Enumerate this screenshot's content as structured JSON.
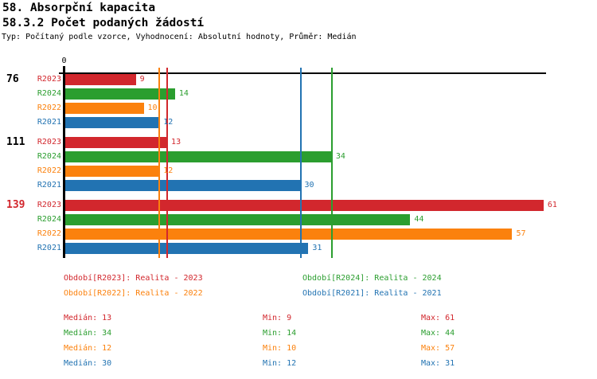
{
  "header": {
    "title_line1": "58. Absorpční kapacita",
    "title_line2": "58.3.2 Počet podaných žádostí",
    "subtitle": "Typ: Počítaný podle vzorce, Vyhodnocení: Absolutní hodnoty, Průměr: Medián"
  },
  "chart_data": {
    "type": "bar",
    "orientation": "horizontal",
    "title": "58.3.2 Počet podaných žádostí",
    "axis": {
      "origin_label": "0",
      "xlim": [
        0,
        61
      ],
      "grid": false
    },
    "series": [
      {
        "id": "R2023",
        "label": "R2023",
        "color": "#d2272d",
        "legend": "Období[R2023]: Realita - 2023",
        "median": 13,
        "min": 9,
        "max": 61
      },
      {
        "id": "R2024",
        "label": "R2024",
        "color": "#2b9e2f",
        "legend": "Období[R2024]: Realita - 2024",
        "median": 34,
        "min": 14,
        "max": 44
      },
      {
        "id": "R2022",
        "label": "R2022",
        "color": "#fb810d",
        "legend": "Období[R2022]: Realita - 2022",
        "median": 12,
        "min": 10,
        "max": 57
      },
      {
        "id": "R2021",
        "label": "R2021",
        "color": "#2273b2",
        "legend": "Období[R2021]: Realita - 2021",
        "median": 30,
        "min": 12,
        "max": 31
      }
    ],
    "groups": [
      {
        "label": "76",
        "label_color": "#000000",
        "values": [
          9,
          14,
          10,
          12
        ]
      },
      {
        "label": "111",
        "label_color": "#000000",
        "values": [
          13,
          34,
          12,
          30
        ]
      },
      {
        "label": "139",
        "label_color": "#d2272d",
        "values": [
          61,
          44,
          57,
          31
        ]
      }
    ],
    "median_lines": [
      {
        "series": "R2022",
        "value": 12,
        "color": "#fb810d"
      },
      {
        "series": "R2023",
        "value": 13,
        "color": "#d2272d"
      },
      {
        "series": "R2021",
        "value": 30,
        "color": "#2273b2"
      },
      {
        "series": "R2024",
        "value": 34,
        "color": "#2b9e2f"
      }
    ],
    "legend_position": "bottom"
  },
  "stats": {
    "median_label": "Medián",
    "min_label": "Min",
    "max_label": "Max"
  }
}
